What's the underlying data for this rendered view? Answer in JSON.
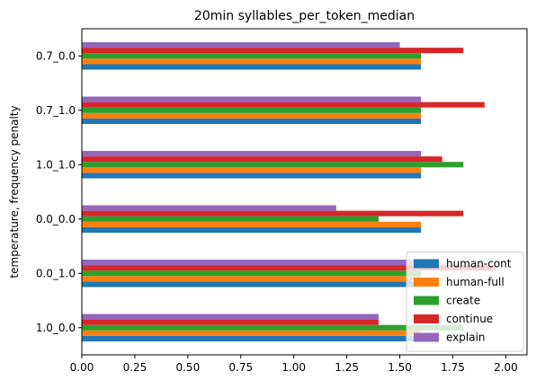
{
  "chart_data": {
    "type": "bar",
    "orientation": "horizontal",
    "title": "20min syllables_per_token_median",
    "ylabel": "temperature, frequency penalty",
    "xlabel": "",
    "xlim": [
      0,
      2.1
    ],
    "x_ticks": [
      "0.00",
      "0.25",
      "0.50",
      "0.75",
      "1.00",
      "1.25",
      "1.50",
      "1.75",
      "2.00"
    ],
    "x_tick_values": [
      0,
      0.25,
      0.5,
      0.75,
      1.0,
      1.25,
      1.5,
      1.75,
      2.0
    ],
    "categories": [
      "1.0_0.0",
      "0.0_1.0",
      "0.0_0.0",
      "1.0_1.0",
      "0.7_1.0",
      "0.7_0.0"
    ],
    "series": [
      {
        "name": "human-cont",
        "color": "#1f77b4",
        "values": [
          1.6,
          1.6,
          1.6,
          1.6,
          1.6,
          1.6
        ]
      },
      {
        "name": "human-full",
        "color": "#ff7f0e",
        "values": [
          1.6,
          1.6,
          1.6,
          1.6,
          1.6,
          1.6
        ]
      },
      {
        "name": "create",
        "color": "#2ca02c",
        "values": [
          1.8,
          1.6,
          1.4,
          1.8,
          1.6,
          1.6
        ]
      },
      {
        "name": "continue",
        "color": "#d62728",
        "values": [
          1.4,
          1.95,
          1.8,
          1.7,
          1.9,
          1.8
        ]
      },
      {
        "name": "explain",
        "color": "#9467bd",
        "values": [
          1.4,
          1.6,
          1.2,
          1.6,
          1.6,
          1.5
        ]
      }
    ],
    "grid": false,
    "legend_position": "lower-right"
  }
}
